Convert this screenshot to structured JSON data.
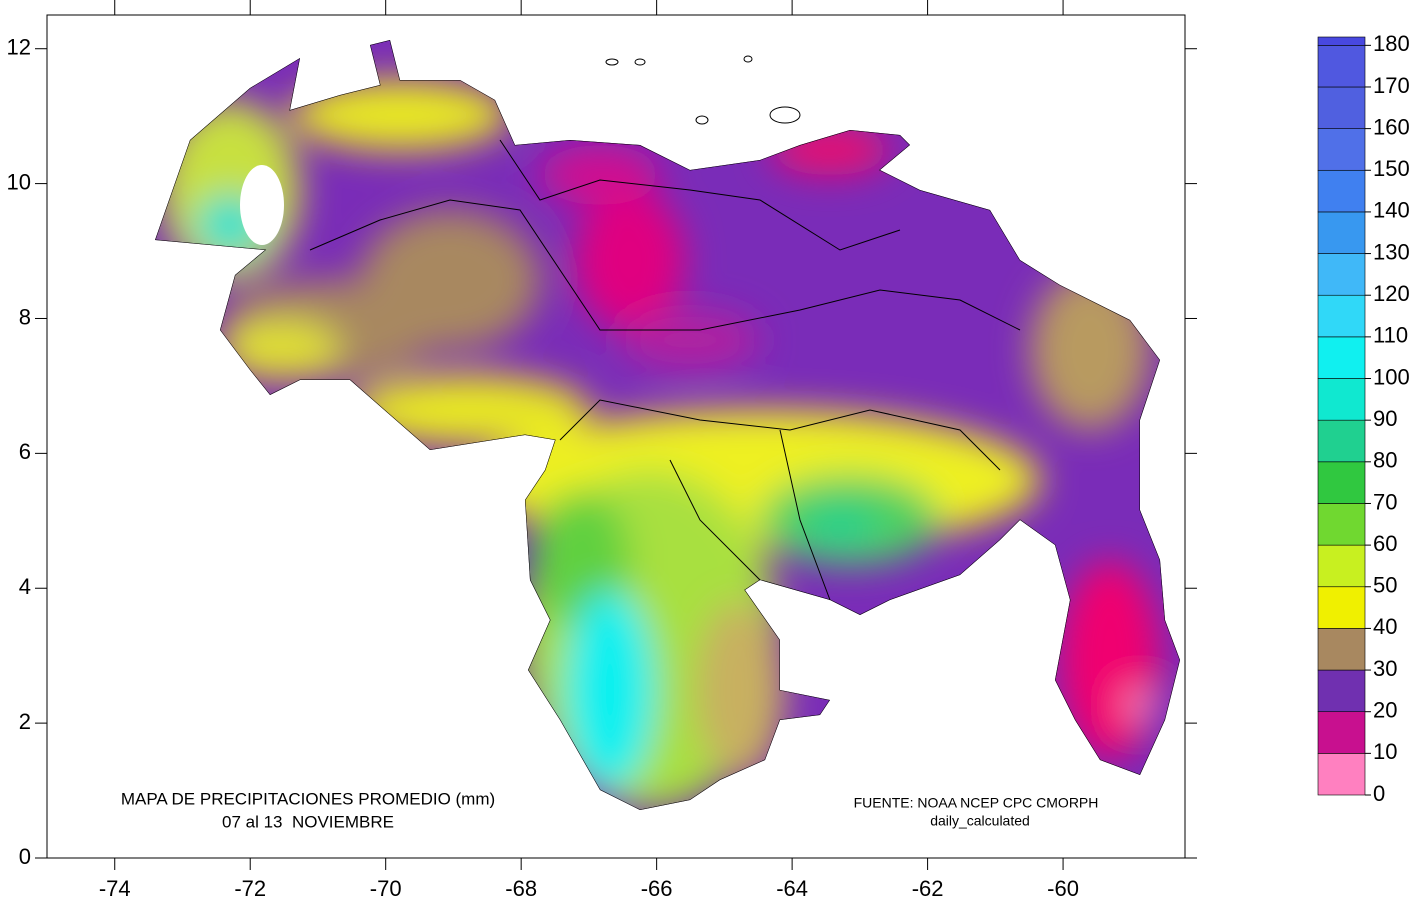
{
  "map": {
    "title": [
      "MAPA DE PRECIPITACIONES PROMEDIO (mm)",
      "07 al 13  NOVIEMBRE"
    ],
    "source": [
      "FUENTE: NOAA NCEP CPC CMORPH",
      "daily_calculated"
    ],
    "xlim": [
      -75,
      -58.2
    ],
    "ylim": [
      0,
      12.5
    ],
    "xticks": [
      -74,
      -72,
      -70,
      -68,
      -66,
      -64,
      -62,
      -60
    ],
    "yticks": [
      0,
      2,
      4,
      6,
      8,
      10,
      12
    ],
    "colorbar": {
      "lim": [
        0,
        182
      ],
      "ticks": [
        0,
        10,
        20,
        30,
        40,
        50,
        60,
        70,
        80,
        90,
        100,
        110,
        120,
        130,
        140,
        150,
        160,
        170,
        180
      ],
      "colors": [
        "#ff80c0",
        "#c8108f",
        "#7030b0",
        "#a88860",
        "#f0f000",
        "#c8f020",
        "#70d830",
        "#30c840",
        "#20d090",
        "#10e8d0",
        "#10f0f0",
        "#30d8f8",
        "#40b8f8",
        "#3898f0",
        "#4080f0",
        "#5070e8",
        "#5060e0",
        "#5058e0",
        "#4848e0"
      ]
    }
  }
}
